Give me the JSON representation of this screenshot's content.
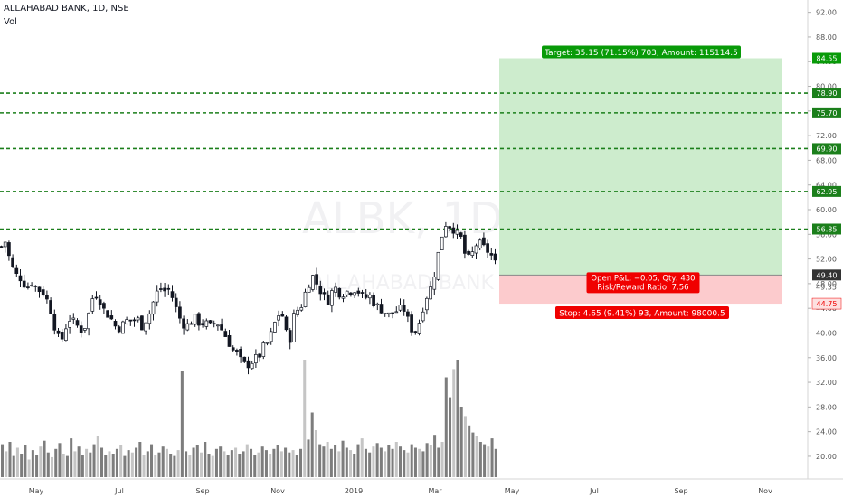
{
  "header": {
    "symbol_line": "ALLAHABAD BANK, 1D, NSE",
    "volume_label": "Vol"
  },
  "watermark": {
    "ticker": "ALBK, 1D",
    "name": "ALLAHABAD BANK"
  },
  "colors": {
    "up": "#131722",
    "down": "#131722",
    "level": "#1b7f1b",
    "target_fill": "#cdeccd",
    "stop_fill": "#fccbcd",
    "target_badge": "#089a08",
    "stop_badge": "#f00000",
    "price_badge": "#333333"
  },
  "chart_data": {
    "type": "candlestick",
    "x_ticks": [
      "May",
      "Jul",
      "Sep",
      "Nov",
      "2019",
      "Mar",
      "May",
      "Jul",
      "Sep",
      "Nov"
    ],
    "y_ticks": [
      "92.00",
      "88.00",
      "84.00",
      "80.00",
      "76.00",
      "72.00",
      "68.00",
      "64.00",
      "60.00",
      "56.00",
      "52.00",
      "48.00",
      "44.00",
      "40.00",
      "36.00",
      "32.00",
      "28.00",
      "24.00",
      "20.00"
    ],
    "ylim": [
      17.5,
      94
    ],
    "last_price": "49.40",
    "stop_price": "44.75",
    "target_price": "84.55",
    "horizontal_levels": [
      "78.90",
      "75.70",
      "69.90",
      "62.95",
      "56.85"
    ],
    "right_labels_axis": [
      "49.35"
    ],
    "close_path": [
      [
        0,
        54.0
      ],
      [
        3,
        55.5
      ],
      [
        7,
        53.2
      ],
      [
        11,
        51.0
      ],
      [
        16,
        49.5
      ],
      [
        22,
        48.8
      ],
      [
        28,
        47.2
      ],
      [
        34,
        48.3
      ],
      [
        40,
        47.0
      ],
      [
        45,
        46.8
      ],
      [
        50,
        45.5
      ],
      [
        54,
        44.0
      ],
      [
        58,
        41.5
      ],
      [
        62,
        39.5
      ],
      [
        66,
        38.5
      ],
      [
        70,
        40.5
      ],
      [
        75,
        42.3
      ],
      [
        80,
        41.8
      ],
      [
        85,
        41.0
      ],
      [
        90,
        40.2
      ],
      [
        95,
        42.0
      ],
      [
        100,
        45.5
      ],
      [
        105,
        46.2
      ],
      [
        110,
        45.0
      ],
      [
        115,
        43.2
      ],
      [
        120,
        42.8
      ],
      [
        125,
        41.2
      ],
      [
        130,
        40.8
      ],
      [
        135,
        41.5
      ],
      [
        140,
        42.2
      ],
      [
        145,
        41.8
      ],
      [
        150,
        42.5
      ],
      [
        155,
        41.0
      ],
      [
        160,
        42.2
      ],
      [
        165,
        43.5
      ],
      [
        170,
        46.0
      ],
      [
        175,
        47.3
      ],
      [
        180,
        46.8
      ],
      [
        185,
        47.0
      ],
      [
        190,
        45.5
      ],
      [
        195,
        43.2
      ],
      [
        200,
        41.5
      ],
      [
        205,
        41.2
      ],
      [
        210,
        41.8
      ],
      [
        215,
        42.5
      ],
      [
        220,
        41.3
      ],
      [
        225,
        41.8
      ],
      [
        230,
        41.0
      ],
      [
        235,
        41.6
      ],
      [
        240,
        41.5
      ],
      [
        245,
        40.2
      ],
      [
        250,
        39.0
      ],
      [
        255,
        37.3
      ],
      [
        260,
        36.8
      ],
      [
        265,
        35.5
      ],
      [
        270,
        34.7
      ],
      [
        275,
        35.0
      ],
      [
        280,
        35.8
      ],
      [
        285,
        36.2
      ],
      [
        290,
        37.8
      ],
      [
        295,
        38.5
      ],
      [
        300,
        40.5
      ],
      [
        305,
        42.8
      ],
      [
        310,
        43.3
      ],
      [
        315,
        40.0
      ],
      [
        318,
        37.8
      ],
      [
        321,
        41.0
      ],
      [
        324,
        43.2
      ],
      [
        328,
        43.8
      ],
      [
        332,
        44.5
      ],
      [
        336,
        46.5
      ],
      [
        340,
        48.0
      ],
      [
        344,
        49.3
      ],
      [
        348,
        48.2
      ],
      [
        352,
        47.0
      ],
      [
        356,
        46.2
      ],
      [
        360,
        44.8
      ],
      [
        364,
        46.2
      ],
      [
        368,
        47.6
      ],
      [
        372,
        46.8
      ],
      [
        376,
        46.1
      ],
      [
        380,
        46.8
      ],
      [
        384,
        46.7
      ],
      [
        388,
        46.9
      ],
      [
        392,
        47.2
      ],
      [
        396,
        46.5
      ],
      [
        400,
        45.7
      ],
      [
        404,
        45.8
      ],
      [
        408,
        46.0
      ],
      [
        412,
        44.8
      ],
      [
        416,
        44.3
      ],
      [
        420,
        43.8
      ],
      [
        424,
        43.4
      ],
      [
        428,
        42.9
      ],
      [
        432,
        43.3
      ],
      [
        436,
        43.5
      ],
      [
        440,
        43.8
      ],
      [
        444,
        44.2
      ],
      [
        448,
        42.8
      ],
      [
        452,
        41.0
      ],
      [
        455,
        40.3
      ],
      [
        458,
        40.4
      ],
      [
        461,
        41.2
      ],
      [
        465,
        43.5
      ],
      [
        469,
        45.5
      ],
      [
        473,
        46.8
      ],
      [
        477,
        48.0
      ],
      [
        481,
        51.5
      ],
      [
        485,
        54.2
      ],
      [
        489,
        57.2
      ],
      [
        492,
        57.8
      ],
      [
        496,
        57.3
      ],
      [
        500,
        56.8
      ],
      [
        504,
        56.0
      ],
      [
        508,
        55.5
      ],
      [
        512,
        53.0
      ],
      [
        516,
        52.0
      ],
      [
        520,
        52.6
      ],
      [
        524,
        54.2
      ],
      [
        528,
        54.6
      ],
      [
        532,
        54.0
      ],
      [
        536,
        53.6
      ],
      [
        540,
        52.8
      ],
      [
        544,
        52.2
      ],
      [
        548,
        50.5
      ],
      [
        550,
        49.4
      ]
    ],
    "volume_bars_heights_rel": [
      0.28,
      0.22,
      0.3,
      0.18,
      0.25,
      0.2,
      0.27,
      0.15,
      0.23,
      0.19,
      0.26,
      0.31,
      0.21,
      0.17,
      0.24,
      0.29,
      0.2,
      0.18,
      0.33,
      0.22,
      0.26,
      0.19,
      0.24,
      0.21,
      0.28,
      0.35,
      0.25,
      0.19,
      0.22,
      0.2,
      0.24,
      0.27,
      0.18,
      0.23,
      0.21,
      0.25,
      0.3,
      0.19,
      0.22,
      0.28,
      0.19,
      0.21,
      0.26,
      0.24,
      0.2,
      0.18,
      0.23,
      0.9,
      0.22,
      0.19,
      0.25,
      0.27,
      0.21,
      0.3,
      0.2,
      0.18,
      0.24,
      0.26,
      0.22,
      0.19,
      0.23,
      0.25,
      0.2,
      0.22,
      0.28,
      0.24,
      0.19,
      0.21,
      0.26,
      0.23,
      0.2,
      0.24,
      0.27,
      0.22,
      0.25,
      0.21,
      0.23,
      0.19,
      0.24,
      1.0,
      0.32,
      0.55,
      0.4,
      0.28,
      0.26,
      0.3,
      0.24,
      0.27,
      0.22,
      0.31,
      0.25,
      0.23,
      0.2,
      0.28,
      0.33,
      0.24,
      0.21,
      0.26,
      0.29,
      0.25,
      0.22,
      0.27,
      0.24,
      0.3,
      0.26,
      0.23,
      0.21,
      0.28,
      0.25,
      0.24,
      0.22,
      0.29,
      0.27,
      0.36,
      0.25,
      0.3,
      0.85,
      0.68,
      0.92,
      1.0,
      0.6,
      0.52,
      0.44,
      0.38,
      0.35,
      0.3,
      0.28,
      0.26,
      0.33,
      0.24
    ],
    "target_box": {
      "label": "Target: 35.15 (71.15%) 703, Amount: 115114.5"
    },
    "stop_box": {
      "label": "Stop: 4.65 (9.41%) 93, Amount: 98000.5"
    },
    "open_pl": {
      "line1": "Open P&L: −0.05, Qty: 430",
      "line2": "Risk/Reward Ratio: 7.56"
    }
  }
}
